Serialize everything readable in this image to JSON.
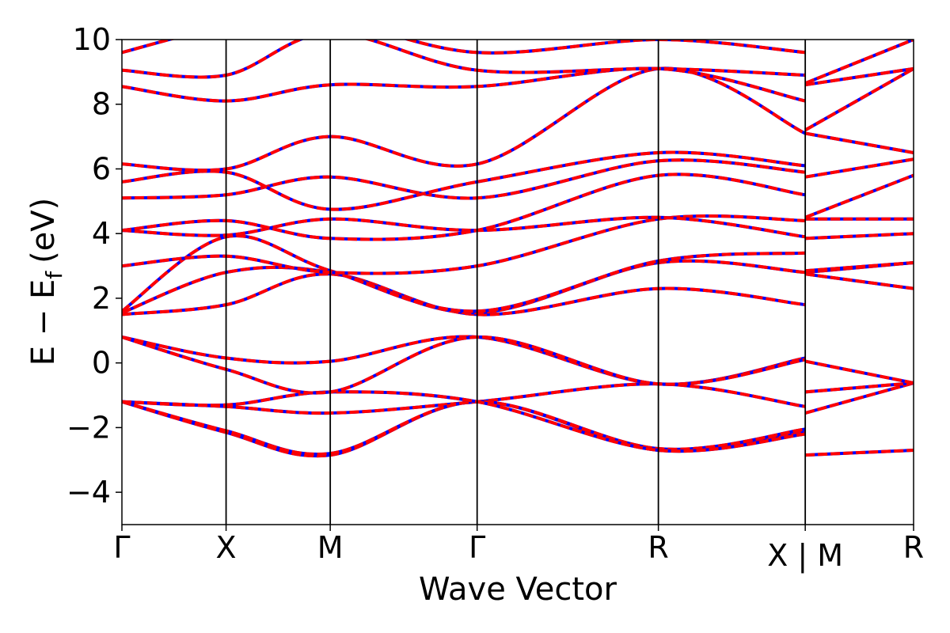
{
  "chart_data": {
    "type": "line",
    "xlabel": "Wave Vector",
    "ylabel": "E − E",
    "ylabel_subscript": "f",
    "ylabel_unit": "(eV)",
    "ylim": [
      -5,
      10
    ],
    "yticks": [
      "−4",
      "−2",
      "0",
      "2",
      "4",
      "6",
      "8",
      "10"
    ],
    "ytick_values": [
      -4,
      -2,
      0,
      2,
      4,
      6,
      8,
      10
    ],
    "xlim": [
      0,
      7.6
    ],
    "kpoints": [
      {
        "label": "Γ",
        "x": 0
      },
      {
        "label": "X",
        "x": 1.0
      },
      {
        "label": "M",
        "x": 2.0
      },
      {
        "label": "Γ",
        "x": 3.41
      },
      {
        "label": "R",
        "x": 5.15
      },
      {
        "label": "X | M",
        "x": 6.56
      },
      {
        "label": "R",
        "x": 7.6
      }
    ],
    "legend": "none",
    "grid": false,
    "colors": {
      "series_a": "#0000ff",
      "series_b": "#ff0000",
      "vlines": "#000000"
    },
    "series": [
      {
        "values_note": "bands",
        "bands": [
          {
            "seg": [
              [
                0,
                -1.2
              ],
              [
                1.0,
                -1.35
              ],
              [
                2.0,
                -1.55
              ],
              [
                3.41,
                -1.2
              ],
              [
                5.15,
                -0.65
              ],
              [
                6.56,
                -1.35
              ]
            ]
          },
          {
            "seg": [
              [
                0,
                -1.2
              ],
              [
                1.0,
                -2.15
              ],
              [
                2.0,
                -2.85
              ],
              [
                3.41,
                -1.2
              ],
              [
                5.15,
                -2.7
              ],
              [
                6.56,
                -2.15
              ]
            ]
          },
          {
            "seg": [
              [
                0,
                -1.2
              ],
              [
                1.0,
                -2.1
              ],
              [
                2.0,
                -2.8
              ],
              [
                3.41,
                -1.2
              ],
              [
                5.15,
                -2.65
              ],
              [
                6.56,
                -2.05
              ]
            ]
          },
          {
            "seg": [
              [
                0,
                -1.2
              ],
              [
                1.0,
                -1.3
              ],
              [
                2.0,
                -0.9
              ],
              [
                3.41,
                -1.2
              ],
              [
                5.15,
                -2.7
              ],
              [
                6.56,
                -2.2
              ]
            ]
          },
          {
            "seg": [
              [
                0,
                0.8
              ],
              [
                1.0,
                0.15
              ],
              [
                2.0,
                0.05
              ],
              [
                3.41,
                0.8
              ],
              [
                5.15,
                -0.65
              ],
              [
                6.56,
                0.15
              ]
            ]
          },
          {
            "seg": [
              [
                0,
                0.8
              ],
              [
                1.0,
                -0.2
              ],
              [
                2.0,
                -0.9
              ],
              [
                3.41,
                0.8
              ],
              [
                5.15,
                -0.65
              ],
              [
                6.56,
                0.1
              ]
            ]
          },
          {
            "seg": [
              [
                0,
                1.5
              ],
              [
                1.0,
                1.8
              ],
              [
                2.0,
                2.75
              ],
              [
                3.41,
                1.5
              ],
              [
                5.15,
                2.3
              ],
              [
                6.56,
                1.8
              ]
            ]
          },
          {
            "seg": [
              [
                0,
                1.55
              ],
              [
                1.0,
                2.8
              ],
              [
                2.0,
                2.8
              ],
              [
                3.41,
                1.55
              ],
              [
                5.15,
                3.1
              ],
              [
                6.56,
                2.8
              ]
            ]
          },
          {
            "seg": [
              [
                0,
                1.6
              ],
              [
                1.0,
                3.9
              ],
              [
                2.0,
                2.85
              ],
              [
                3.41,
                1.6
              ],
              [
                5.15,
                3.15
              ],
              [
                6.56,
                3.4
              ]
            ]
          },
          {
            "seg": [
              [
                0,
                3.0
              ],
              [
                1.0,
                3.3
              ],
              [
                2.0,
                2.8
              ],
              [
                3.41,
                3.0
              ],
              [
                5.15,
                4.45
              ],
              [
                6.56,
                4.4
              ]
            ]
          },
          {
            "seg": [
              [
                0,
                4.1
              ],
              [
                1.0,
                3.95
              ],
              [
                2.0,
                4.45
              ],
              [
                3.41,
                4.1
              ],
              [
                5.15,
                4.5
              ],
              [
                6.56,
                3.9
              ]
            ]
          },
          {
            "seg": [
              [
                0,
                4.1
              ],
              [
                1.0,
                4.4
              ],
              [
                2.0,
                3.85
              ],
              [
                3.41,
                4.1
              ],
              [
                5.15,
                5.8
              ],
              [
                6.56,
                5.2
              ]
            ]
          },
          {
            "seg": [
              [
                0,
                5.1
              ],
              [
                1.0,
                5.2
              ],
              [
                2.0,
                5.75
              ],
              [
                3.41,
                5.1
              ],
              [
                5.15,
                6.25
              ],
              [
                6.56,
                5.9
              ]
            ]
          },
          {
            "seg": [
              [
                0,
                5.6
              ],
              [
                1.0,
                5.9
              ],
              [
                2.0,
                4.75
              ],
              [
                3.41,
                5.6
              ],
              [
                5.15,
                6.5
              ],
              [
                6.56,
                6.1
              ]
            ]
          },
          {
            "seg": [
              [
                0,
                6.15
              ],
              [
                1.0,
                6.0
              ],
              [
                2.0,
                7.0
              ],
              [
                3.41,
                6.15
              ],
              [
                5.15,
                9.1
              ],
              [
                6.56,
                7.1
              ]
            ]
          },
          {
            "seg": [
              [
                0,
                8.55
              ],
              [
                1.0,
                8.1
              ],
              [
                2.0,
                8.6
              ],
              [
                3.41,
                8.55
              ],
              [
                5.15,
                9.1
              ],
              [
                6.56,
                8.1
              ]
            ]
          },
          {
            "seg": [
              [
                0,
                9.05
              ],
              [
                1.0,
                8.9
              ],
              [
                2.0,
                10.2
              ],
              [
                3.41,
                9.05
              ],
              [
                5.15,
                9.1
              ],
              [
                6.56,
                8.9
              ]
            ]
          },
          {
            "seg": [
              [
                0,
                9.6
              ],
              [
                1.0,
                10.4
              ],
              [
                2.0,
                10.6
              ],
              [
                3.41,
                9.6
              ],
              [
                5.15,
                10.0
              ],
              [
                6.56,
                9.6
              ]
            ]
          }
        ]
      },
      {
        "values_note": "bands_MR",
        "bands": [
          {
            "seg": [
              [
                6.56,
                -2.85
              ],
              [
                7.6,
                -2.7
              ]
            ]
          },
          {
            "seg": [
              [
                6.56,
                -1.55
              ],
              [
                7.6,
                -0.62
              ]
            ]
          },
          {
            "seg": [
              [
                6.56,
                -0.9
              ],
              [
                7.6,
                -0.62
              ]
            ]
          },
          {
            "seg": [
              [
                6.56,
                0.05
              ],
              [
                7.6,
                -0.62
              ]
            ]
          },
          {
            "seg": [
              [
                6.56,
                2.75
              ],
              [
                7.6,
                2.3
              ]
            ]
          },
          {
            "seg": [
              [
                6.56,
                2.8
              ],
              [
                7.6,
                3.1
              ]
            ]
          },
          {
            "seg": [
              [
                6.56,
                2.85
              ],
              [
                7.6,
                3.1
              ]
            ]
          },
          {
            "seg": [
              [
                6.56,
                3.85
              ],
              [
                7.6,
                4.0
              ]
            ]
          },
          {
            "seg": [
              [
                6.56,
                4.45
              ],
              [
                7.6,
                4.45
              ]
            ]
          },
          {
            "seg": [
              [
                6.56,
                4.5
              ],
              [
                7.6,
                5.8
              ]
            ]
          },
          {
            "seg": [
              [
                6.56,
                5.75
              ],
              [
                7.6,
                6.3
              ]
            ]
          },
          {
            "seg": [
              [
                6.56,
                7.1
              ],
              [
                7.6,
                6.5
              ]
            ]
          },
          {
            "seg": [
              [
                6.56,
                7.2
              ],
              [
                7.6,
                9.1
              ]
            ]
          },
          {
            "seg": [
              [
                6.56,
                8.6
              ],
              [
                7.6,
                9.1
              ]
            ]
          },
          {
            "seg": [
              [
                6.56,
                8.65
              ],
              [
                7.6,
                10.0
              ]
            ]
          }
        ]
      }
    ]
  }
}
